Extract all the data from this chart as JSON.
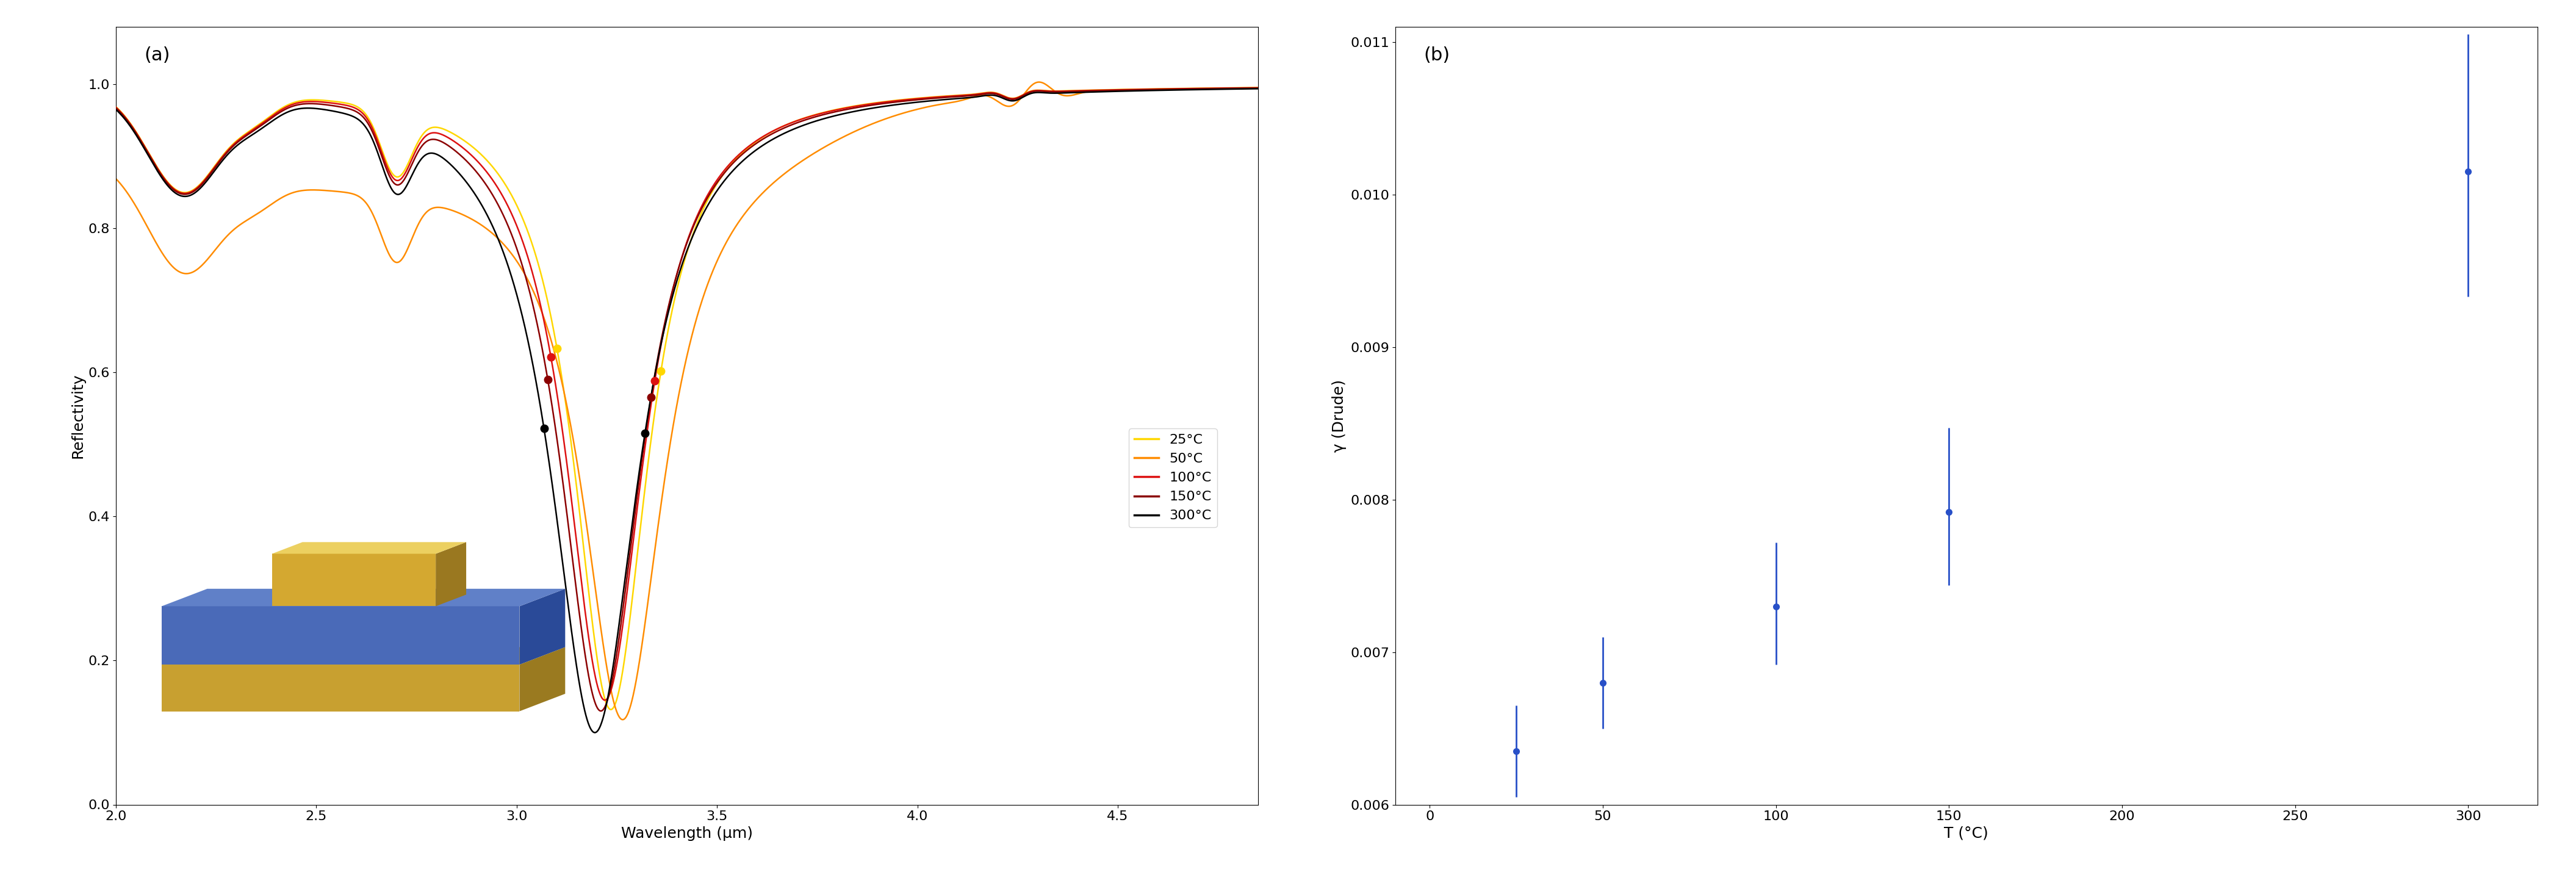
{
  "panel_b": {
    "temperatures": [
      25,
      50,
      100,
      150,
      300
    ],
    "gamma_values": [
      0.00635,
      0.0068,
      0.0073,
      0.00792,
      0.01015
    ],
    "gamma_errors_up": [
      0.0003,
      0.0003,
      0.00042,
      0.00055,
      0.0009
    ],
    "gamma_errors_down": [
      0.0003,
      0.0003,
      0.00038,
      0.00048,
      0.00082
    ],
    "color": "#2850C8",
    "xlabel": "T (°C)",
    "ylabel": "γ (Drude)",
    "label_b": "(b)",
    "ylim": [
      0.006,
      0.0111
    ],
    "yticks": [
      0.006,
      0.007,
      0.008,
      0.009,
      0.01,
      0.011
    ],
    "xlim": [
      -10,
      320
    ],
    "xticks": [
      0,
      50,
      100,
      150,
      200,
      250,
      300
    ]
  },
  "panel_a": {
    "xlabel": "Wavelength (μm)",
    "ylabel": "Reflectivity",
    "label_a": "(a)",
    "xlim": [
      2.0,
      4.85
    ],
    "ylim": [
      0.0,
      1.08
    ],
    "yticks": [
      0.0,
      0.2,
      0.4,
      0.6,
      0.8,
      1.0
    ],
    "legend_labels": [
      "25°C",
      "50°C",
      "100°C",
      "150°C",
      "300°C"
    ],
    "legend_colors": [
      "#FFD700",
      "#FF8C00",
      "#DD1111",
      "#8B0000",
      "#000000"
    ]
  },
  "figure_width": 42.22,
  "figure_height": 14.65
}
